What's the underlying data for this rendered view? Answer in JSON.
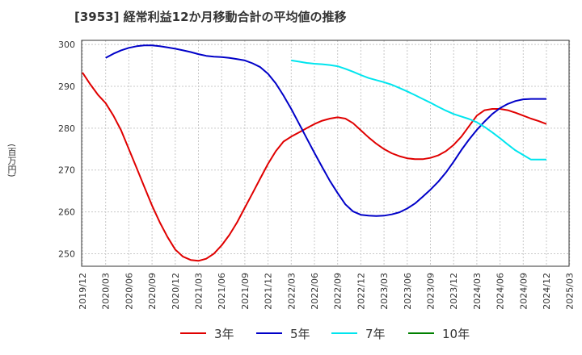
{
  "chart_data": {
    "type": "line",
    "title": "[3953]  経常利益12か月移動合計の平均値の推移",
    "ylabel": "(百万円)",
    "xlabel": "",
    "ylim": [
      247,
      301
    ],
    "yticks": [
      250,
      260,
      270,
      280,
      290,
      300
    ],
    "xticks": [
      "2019/12",
      "2020/03",
      "2020/06",
      "2020/09",
      "2020/12",
      "2021/03",
      "2021/06",
      "2021/09",
      "2021/12",
      "2022/03",
      "2022/06",
      "2022/09",
      "2022/12",
      "2023/03",
      "2023/06",
      "2023/09",
      "2023/12",
      "2024/03",
      "2024/06",
      "2024/09",
      "2024/12",
      "2025/03"
    ],
    "grid": true,
    "legend_position": "bottom",
    "series": [
      {
        "name": "3年",
        "color": "#e00000",
        "x": [
          "2019/12",
          "2020/01",
          "2020/02",
          "2020/03",
          "2020/04",
          "2020/05",
          "2020/06",
          "2020/07",
          "2020/08",
          "2020/09",
          "2020/10",
          "2020/11",
          "2020/12",
          "2021/01",
          "2021/02",
          "2021/03",
          "2021/04",
          "2021/05",
          "2021/06",
          "2021/07",
          "2021/08",
          "2021/09",
          "2021/10",
          "2021/11",
          "2021/12",
          "2022/01",
          "2022/02",
          "2022/03",
          "2022/04",
          "2022/05",
          "2022/06",
          "2022/07",
          "2022/08",
          "2022/09",
          "2022/10",
          "2022/11",
          "2022/12",
          "2023/01",
          "2023/02",
          "2023/03",
          "2023/04",
          "2023/05",
          "2023/06",
          "2023/07",
          "2023/08",
          "2023/09",
          "2023/10",
          "2023/11",
          "2023/12",
          "2024/01",
          "2024/02",
          "2024/03",
          "2024/04",
          "2024/05",
          "2024/06",
          "2024/07",
          "2024/08",
          "2024/09",
          "2024/10",
          "2024/11",
          "2024/12"
        ],
        "values": [
          293.3,
          290.5,
          288.0,
          286.0,
          283.0,
          279.5,
          275.0,
          270.5,
          266.0,
          261.5,
          257.5,
          254.0,
          251.0,
          249.3,
          248.5,
          248.3,
          248.8,
          250.0,
          252.0,
          254.5,
          257.5,
          261.0,
          264.5,
          268.0,
          271.5,
          274.5,
          276.8,
          278.0,
          279.0,
          280.0,
          281.0,
          281.8,
          282.3,
          282.6,
          282.3,
          281.2,
          279.5,
          277.8,
          276.3,
          275.0,
          274.0,
          273.3,
          272.8,
          272.6,
          272.6,
          272.9,
          273.5,
          274.5,
          276.0,
          278.0,
          280.5,
          283.0,
          284.3,
          284.6,
          284.6,
          284.3,
          283.7,
          283.0,
          282.3,
          281.7,
          281.0
        ]
      },
      {
        "name": "5年",
        "color": "#0000c8",
        "x": [
          "2020/03",
          "2020/04",
          "2020/05",
          "2020/06",
          "2020/07",
          "2020/08",
          "2020/09",
          "2020/10",
          "2020/11",
          "2020/12",
          "2021/01",
          "2021/02",
          "2021/03",
          "2021/04",
          "2021/05",
          "2021/06",
          "2021/07",
          "2021/08",
          "2021/09",
          "2021/10",
          "2021/11",
          "2021/12",
          "2022/01",
          "2022/02",
          "2022/03",
          "2022/04",
          "2022/05",
          "2022/06",
          "2022/07",
          "2022/08",
          "2022/09",
          "2022/10",
          "2022/11",
          "2022/12",
          "2023/01",
          "2023/02",
          "2023/03",
          "2023/04",
          "2023/05",
          "2023/06",
          "2023/07",
          "2023/08",
          "2023/09",
          "2023/10",
          "2023/11",
          "2023/12",
          "2024/01",
          "2024/02",
          "2024/03",
          "2024/04",
          "2024/05",
          "2024/06",
          "2024/07",
          "2024/08",
          "2024/09",
          "2024/10",
          "2024/11",
          "2024/12"
        ],
        "values": [
          296.8,
          297.8,
          298.6,
          299.2,
          299.6,
          299.8,
          299.8,
          299.6,
          299.3,
          299.0,
          298.6,
          298.2,
          297.7,
          297.3,
          297.1,
          297.0,
          296.8,
          296.5,
          296.2,
          295.5,
          294.6,
          293.0,
          290.7,
          287.8,
          284.6,
          281.1,
          277.6,
          274.1,
          270.7,
          267.4,
          264.5,
          261.8,
          260.1,
          259.3,
          259.1,
          259.0,
          259.1,
          259.4,
          259.9,
          260.8,
          262.0,
          263.6,
          265.3,
          267.2,
          269.4,
          272.0,
          274.8,
          277.3,
          279.6,
          281.6,
          283.4,
          284.8,
          285.8,
          286.5,
          286.9,
          287.0,
          287.0,
          287.0
        ]
      },
      {
        "name": "7年",
        "color": "#00e5ee",
        "x": [
          "2022/03",
          "2022/04",
          "2022/05",
          "2022/06",
          "2022/07",
          "2022/08",
          "2022/09",
          "2022/10",
          "2022/11",
          "2022/12",
          "2023/01",
          "2023/02",
          "2023/03",
          "2023/04",
          "2023/05",
          "2023/06",
          "2023/07",
          "2023/08",
          "2023/09",
          "2023/10",
          "2023/11",
          "2023/12",
          "2024/01",
          "2024/02",
          "2024/03",
          "2024/04",
          "2024/05",
          "2024/06",
          "2024/07",
          "2024/08",
          "2024/09",
          "2024/10",
          "2024/11",
          "2024/12"
        ],
        "values": [
          296.2,
          295.9,
          295.6,
          295.4,
          295.3,
          295.1,
          294.8,
          294.2,
          293.5,
          292.7,
          292.0,
          291.5,
          291.0,
          290.4,
          289.6,
          288.8,
          287.9,
          287.0,
          286.1,
          285.1,
          284.2,
          283.4,
          282.8,
          282.2,
          281.4,
          280.3,
          279.0,
          277.6,
          276.1,
          274.7,
          273.6,
          272.5,
          272.5,
          272.5
        ]
      },
      {
        "name": "10年",
        "color": "#008000",
        "x": [],
        "values": []
      }
    ]
  }
}
